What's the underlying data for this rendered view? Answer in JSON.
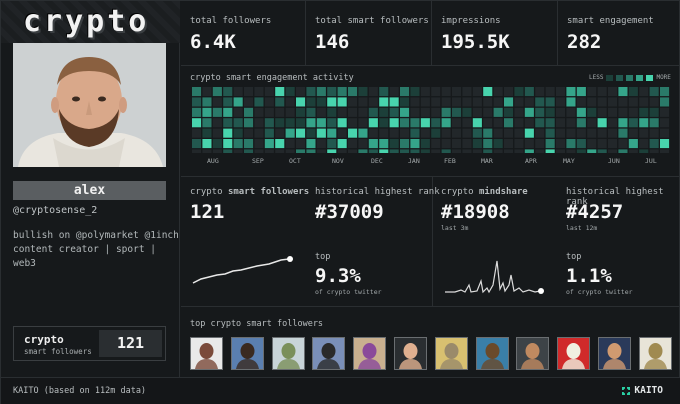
{
  "logo": "crypto",
  "profile": {
    "name": "alex",
    "handle": "@cryptosense_2",
    "bio_line1": "bullish on @polymarket @1inch",
    "bio_line2": "content creator | sport | web3",
    "stat_label1": "crypto",
    "stat_label2": "smart followers",
    "stat_value": "121"
  },
  "metrics": [
    {
      "title": "total followers",
      "value": "6.4K"
    },
    {
      "title": "total smart followers",
      "value": "146"
    },
    {
      "title": "impressions",
      "value": "195.5K"
    },
    {
      "title": "smart engagement",
      "value": "282"
    }
  ],
  "heatmap": {
    "title": "crypto smart engagement activity",
    "legend_less": "LESS",
    "legend_more": "MORE",
    "legend_colors": [
      "#1c3f39",
      "#22584f",
      "#2a7a69",
      "#35a58a",
      "#48d4ad"
    ],
    "months": [
      "AUG",
      "SEP",
      "OCT",
      "NOV",
      "DEC",
      "JAN",
      "FEB",
      "MAR",
      "APR",
      "MAY",
      "JUN",
      "JUL"
    ]
  },
  "smart_followers_panel": {
    "title_prefix": "crypto ",
    "title_bold": "smart followers",
    "value": "121",
    "rank_title": "historical highest rank",
    "rank_value": "#37009",
    "top_label": "top",
    "top_pct": "9.3%",
    "top_sub": "of crypto twitter"
  },
  "mindshare_panel": {
    "title_prefix": "crypto ",
    "title_bold": "mindshare",
    "value": "#18908",
    "value_sub": "last 3m",
    "rank_title": "historical highest rank",
    "rank_value": "#4257",
    "rank_sub": "last 12m",
    "top_label": "top",
    "top_pct": "1.1%",
    "top_sub": "of crypto twitter"
  },
  "followers": {
    "title": "top crypto smart followers",
    "avatars": [
      {
        "bg": "#e9e9e9",
        "fg": "#7a4a3a"
      },
      {
        "bg": "#5a7fb0",
        "fg": "#3a2a20"
      },
      {
        "bg": "#c8d4d8",
        "fg": "#7a8f5a"
      },
      {
        "bg": "#7a8fb8",
        "fg": "#2a2a2a"
      },
      {
        "bg": "#c9b08f",
        "fg": "#8a4a9a"
      },
      {
        "bg": "#2a2e31",
        "fg": "#e0b090"
      },
      {
        "bg": "#d8c070",
        "fg": "#9a8a6a"
      },
      {
        "bg": "#3a7fa8",
        "fg": "#6a4a2a"
      },
      {
        "bg": "#3d4347",
        "fg": "#c08a60"
      },
      {
        "bg": "#d02a2a",
        "fg": "#f0f0e0"
      },
      {
        "bg": "#2a3a5a",
        "fg": "#d09a70"
      },
      {
        "bg": "#e8e4d8",
        "fg": "#a08a50"
      }
    ]
  },
  "footer": {
    "text": "KAITO (based on 112m data)",
    "brand": "KAITO"
  }
}
